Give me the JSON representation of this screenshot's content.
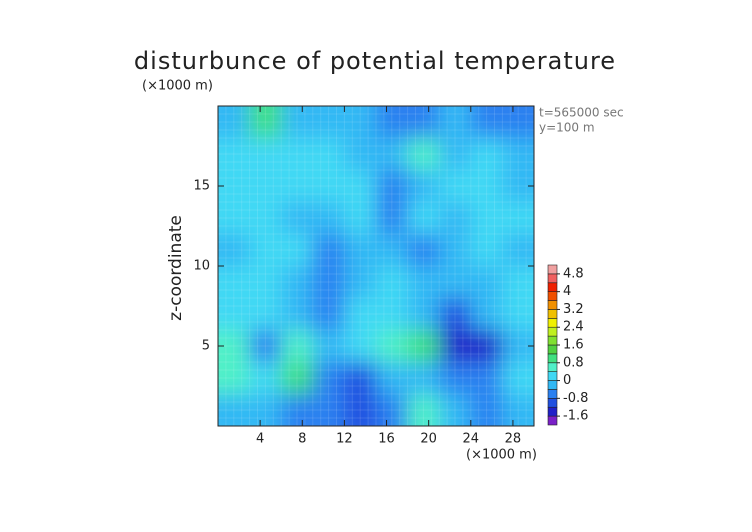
{
  "chart_data": {
    "type": "contour",
    "title": "disturbunce of potential temperature",
    "y_unit_label": "(×1000 m)",
    "x_unit_label": "(×1000 m)",
    "ylabel": "z-coordinate",
    "annotations": [
      "t=565000 sec",
      "y=100 m"
    ],
    "xlim": [
      0,
      30
    ],
    "ylim": [
      0,
      20
    ],
    "xticks": [
      4,
      8,
      12,
      16,
      20,
      24,
      28
    ],
    "yticks": [
      5,
      10,
      15
    ],
    "x": [
      1.5,
      4.5,
      7.5,
      10.5,
      13.5,
      16.5,
      19.5,
      22.5,
      25.5,
      28.5
    ],
    "z": [
      1,
      3,
      5,
      7,
      9,
      11,
      13,
      15,
      17,
      19
    ],
    "values": [
      [
        -0.2,
        -0.4,
        -0.6,
        -0.8,
        -1.0,
        -0.6,
        0.4,
        -0.4,
        -0.8,
        -0.2
      ],
      [
        0.6,
        0.2,
        0.8,
        -0.8,
        -1.2,
        -0.4,
        -0.2,
        -0.8,
        -0.6,
        0
      ],
      [
        0.4,
        -0.8,
        0.4,
        -0.2,
        0,
        0.6,
        0.8,
        -1.4,
        -1.6,
        -0.2
      ],
      [
        0,
        0,
        -0.2,
        -0.6,
        0.2,
        0,
        -0.2,
        -1.0,
        -0.4,
        0
      ],
      [
        0,
        0,
        -0.2,
        -0.8,
        -0.2,
        0,
        -0.4,
        -0.2,
        -0.2,
        0
      ],
      [
        -0.2,
        0,
        0,
        -0.6,
        -0.4,
        -0.4,
        -0.6,
        -0.2,
        0,
        -0.2
      ],
      [
        0,
        0,
        -0.2,
        -0.2,
        0,
        -0.6,
        0,
        -0.2,
        0,
        0
      ],
      [
        0,
        0.2,
        0,
        0,
        0,
        -0.6,
        -0.2,
        0,
        0,
        -0.2
      ],
      [
        0,
        0.2,
        0,
        0,
        -0.2,
        -0.4,
        0.4,
        -0.4,
        0,
        -0.2
      ],
      [
        -0.4,
        0.8,
        -0.2,
        -0.2,
        -0.4,
        -0.6,
        -0.6,
        -0.4,
        -0.6,
        -0.6
      ]
    ],
    "levels": [
      -2.0,
      -1.6,
      -1.2,
      -0.8,
      -0.4,
      0,
      0.4,
      0.8,
      1.2,
      1.6,
      2.0,
      2.4,
      2.8,
      3.2,
      3.6,
      4.0,
      4.4,
      4.8,
      5.2
    ],
    "colors": [
      "#7a20c8",
      "#2020c8",
      "#2050e0",
      "#2a80f0",
      "#30b8f4",
      "#40d8f4",
      "#50f0c8",
      "#40e080",
      "#50d040",
      "#80e030",
      "#c0f020",
      "#f0f000",
      "#f0c000",
      "#f09000",
      "#f05000",
      "#f02000",
      "#f06060",
      "#f0a0a0"
    ],
    "colorbar_ticks": [
      4.8,
      4,
      3.2,
      2.4,
      1.6,
      0.8,
      0,
      -0.8,
      -1.6
    ]
  }
}
